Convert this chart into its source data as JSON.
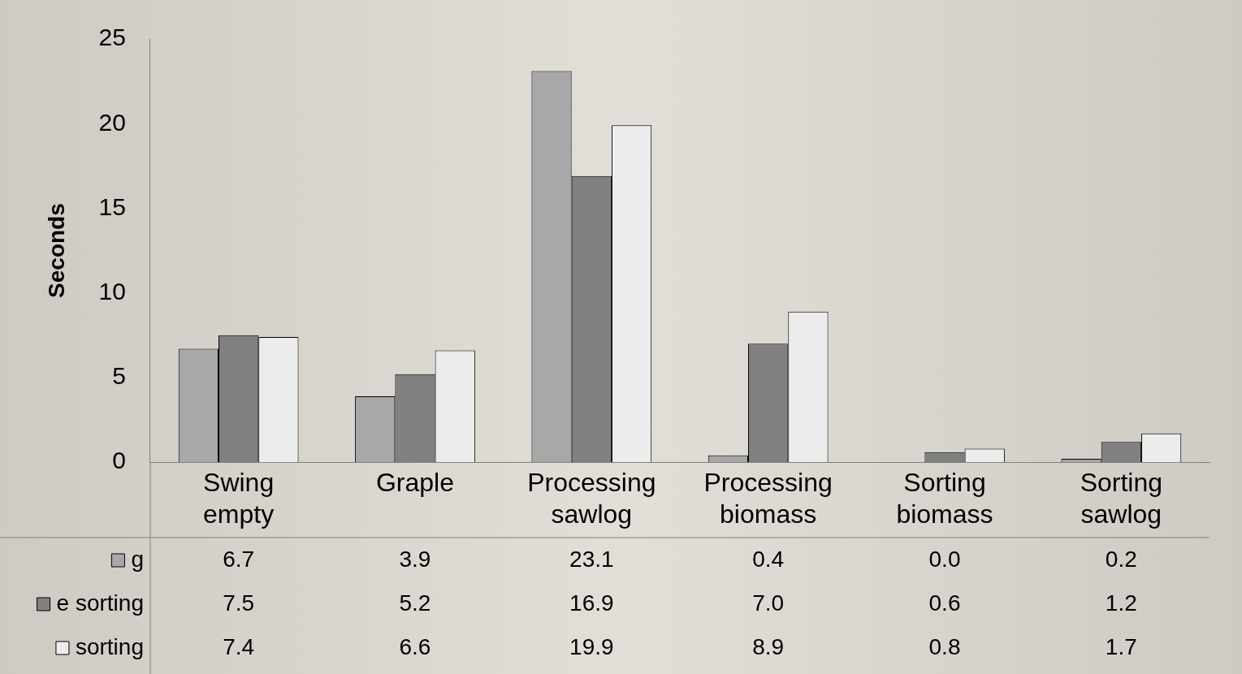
{
  "chart_data": {
    "type": "bar",
    "ylabel": "Seconds",
    "categories": [
      "Swing empty",
      "Graple",
      "Processing sawlog",
      "Processing biomass",
      "Sorting biomass",
      "Sorting sawlog"
    ],
    "series": [
      {
        "name": "g",
        "color": "#a8a8a8",
        "values": [
          6.7,
          3.9,
          23.1,
          0.4,
          0.0,
          0.2
        ],
        "value_labels": [
          "6.7",
          "3.9",
          "23.1",
          "0.4",
          "0.0",
          "0.2"
        ]
      },
      {
        "name": "e sorting",
        "color": "#808080",
        "values": [
          7.5,
          5.2,
          16.9,
          7.0,
          0.6,
          1.2
        ],
        "value_labels": [
          "7.5",
          "5.2",
          "16.9",
          "7.0",
          "0.6",
          "1.2"
        ]
      },
      {
        "name": "sorting",
        "color": "#ececec",
        "values": [
          7.4,
          6.6,
          19.9,
          8.9,
          0.8,
          1.7
        ],
        "value_labels": [
          "7.4",
          "6.6",
          "19.9",
          "8.9",
          "0.8",
          "1.7"
        ]
      }
    ],
    "ylim": [
      0,
      25
    ],
    "yticks": [
      0,
      5,
      10,
      15,
      20,
      25
    ],
    "grid": false,
    "legend": "bottom"
  }
}
